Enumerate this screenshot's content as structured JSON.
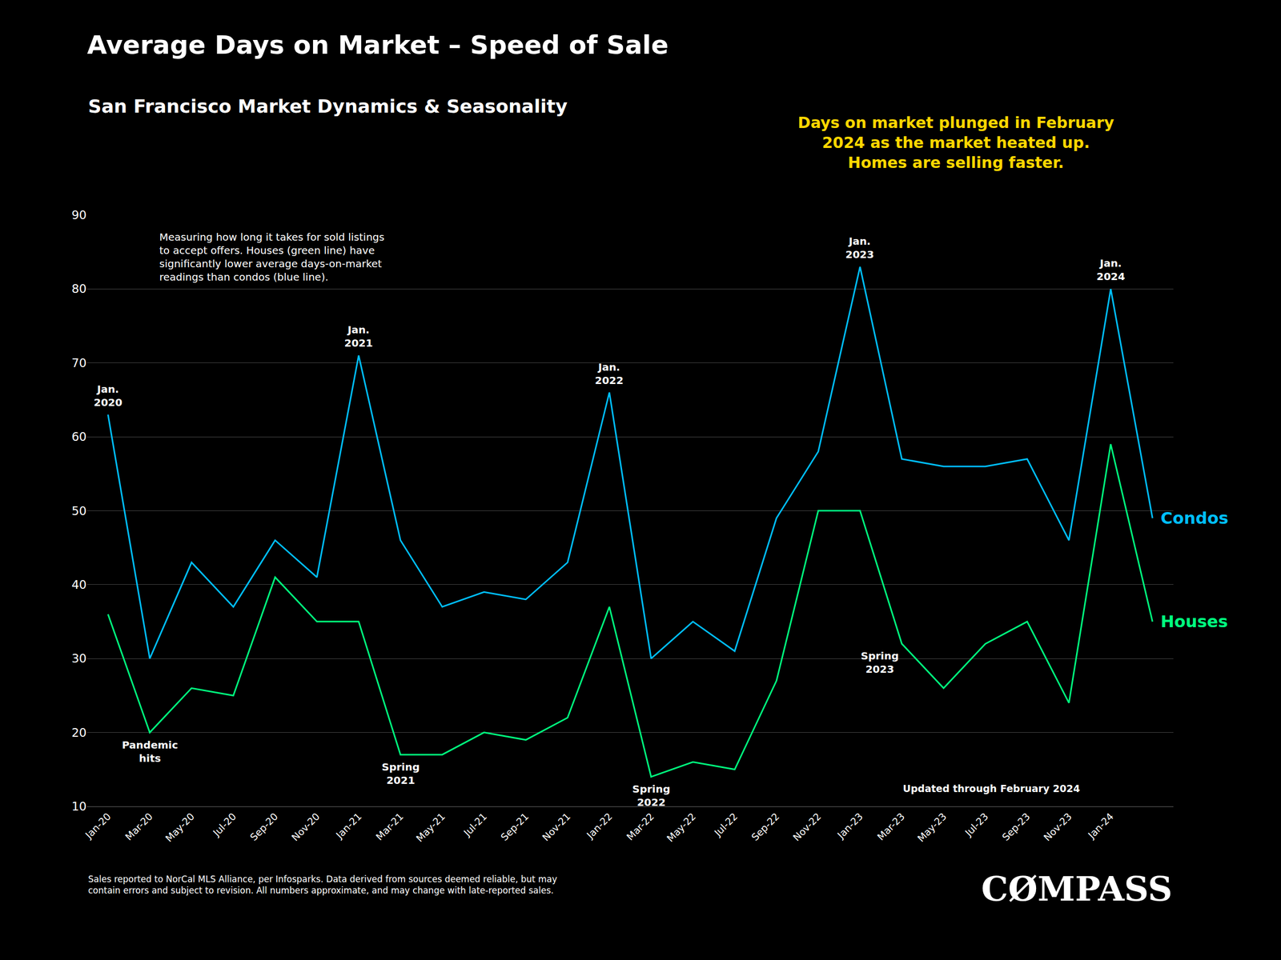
{
  "chart_data": {
    "type": "line",
    "title": "Average Days on Market – Speed of Sale",
    "subtitle": "San Francisco Market Dynamics & Seasonality",
    "categories": [
      "Jan-20",
      "Mar-20",
      "May-20",
      "Jul-20",
      "Sep-20",
      "Nov-20",
      "Jan-21",
      "Mar-21",
      "May-21",
      "Jul-21",
      "Sep-21",
      "Nov-21",
      "Jan-22",
      "Mar-22",
      "May-22",
      "Jul-22",
      "Sep-22",
      "Nov-22",
      "Jan-23",
      "Mar-23",
      "May-23",
      "Jul-23",
      "Sep-23",
      "Nov-23",
      "Jan-24",
      null
    ],
    "series": [
      {
        "name": "Condos",
        "color": "#00BFFF",
        "values": [
          63,
          30,
          43,
          37,
          46,
          41,
          71,
          46,
          37,
          39,
          38,
          43,
          66,
          30,
          35,
          31,
          49,
          58,
          83,
          57,
          56,
          56,
          57,
          46,
          80,
          49
        ]
      },
      {
        "name": "Houses",
        "color": "#00FF7F",
        "values": [
          36,
          20,
          26,
          25,
          41,
          35,
          35,
          17,
          17,
          20,
          19,
          22,
          37,
          14,
          16,
          15,
          27,
          50,
          50,
          32,
          26,
          32,
          35,
          24,
          59,
          35
        ]
      }
    ],
    "ylim": [
      10,
      90
    ],
    "yticks": [
      10,
      20,
      30,
      40,
      50,
      60,
      70,
      80,
      90
    ],
    "grid": true,
    "annotations": [
      {
        "text": "Measuring how long it takes for sold listings\nto accept offers. Houses (green line) have\nsignificantly lower average days-on-market\nreadings than condos (blue line)."
      },
      {
        "text": "Jan.\n2020"
      },
      {
        "text": "Jan.\n2021"
      },
      {
        "text": "Jan.\n2022"
      },
      {
        "text": "Jan.\n2023"
      },
      {
        "text": "Jan.\n2024"
      },
      {
        "text": "Spring\n2021"
      },
      {
        "text": "Spring\n2022"
      },
      {
        "text": "Spring\n2023"
      },
      {
        "text": "Pandemic\nhits"
      },
      {
        "text": "Updated through February 2024"
      },
      {
        "text": "Days on market plunged in February\n2024 as the market heated up.\nHomes are selling faster.",
        "color": "#FFD700"
      },
      {
        "text": "Sales reported to NorCal MLS Alliance, per Infosparks. Data derived from sources deemed reliable, but may\ncontain errors and subject to revision. All numbers approximate, and may change with late-reported sales."
      },
      {
        "text": "CØMPASS"
      }
    ]
  }
}
